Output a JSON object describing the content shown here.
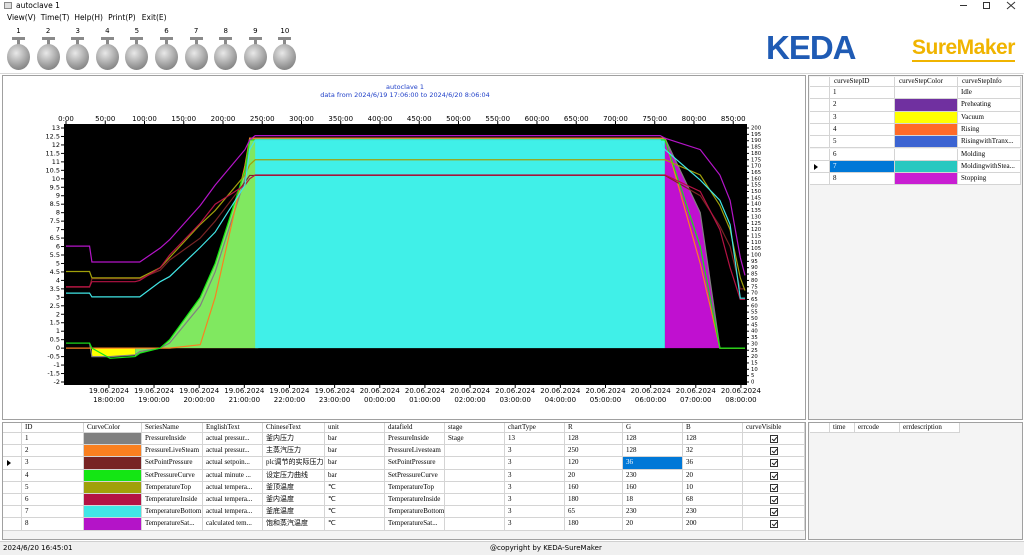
{
  "window": {
    "title": "autoclave 1"
  },
  "menu": [
    "View(V)",
    "Time(T)",
    "Help(H)",
    "Print(P)",
    "Exit(E)"
  ],
  "toolbar": [
    "1",
    "2",
    "3",
    "4",
    "5",
    "6",
    "7",
    "8",
    "9",
    "10"
  ],
  "logo": {
    "brand": "KEDA",
    "product": "SureMaker"
  },
  "chart_data": {
    "type": "line",
    "title": "autoclave 1",
    "subtitle": "data from 2024/6/19 17:06:00 to 2024/6/20 8:06:04",
    "plot_background": "#000000",
    "grid": false,
    "xlim": [
      0,
      865
    ],
    "xticks": [
      {
        "value": 0,
        "label": "0:00"
      },
      {
        "value": 50,
        "label": "50:00"
      },
      {
        "value": 100,
        "label": "100:00"
      },
      {
        "value": 150,
        "label": "150:00"
      },
      {
        "value": 200,
        "label": "200:00"
      },
      {
        "value": 250,
        "label": "250:00"
      },
      {
        "value": 300,
        "label": "300:00"
      },
      {
        "value": 350,
        "label": "350:00"
      },
      {
        "value": 400,
        "label": "400:00"
      },
      {
        "value": 450,
        "label": "450:00"
      },
      {
        "value": 500,
        "label": "500:00"
      },
      {
        "value": 550,
        "label": "550:00"
      },
      {
        "value": 600,
        "label": "600:00"
      },
      {
        "value": 650,
        "label": "650:00"
      },
      {
        "value": 700,
        "label": "700:00"
      },
      {
        "value": 750,
        "label": "750:00"
      },
      {
        "value": 800,
        "label": "800:00"
      },
      {
        "value": 850,
        "label": "850:00"
      }
    ],
    "x2lim": [
      17.05,
      32.09
    ],
    "x2ticks": [
      {
        "value": 18,
        "label": "19.06.2024\n18:00:00"
      },
      {
        "value": 19,
        "label": "19.06.2024\n19:00:00"
      },
      {
        "value": 20,
        "label": "19.06.2024\n20:00:00"
      },
      {
        "value": 21,
        "label": "19.06.2024\n21:00:00"
      },
      {
        "value": 22,
        "label": "19.06.2024\n22:00:00"
      },
      {
        "value": 23,
        "label": "19.06.2024\n23:00:00"
      },
      {
        "value": 24,
        "label": "20.06.2024\n00:00:00"
      },
      {
        "value": 25,
        "label": "20.06.2024\n01:00:00"
      },
      {
        "value": 26,
        "label": "20.06.2024\n02:00:00"
      },
      {
        "value": 27,
        "label": "20.06.2024\n03:00:00"
      },
      {
        "value": 28,
        "label": "20.06.2024\n04:00:00"
      },
      {
        "value": 29,
        "label": "20.06.2024\n05:00:00"
      },
      {
        "value": 30,
        "label": "20.06.2024\n06:00:00"
      },
      {
        "value": 31,
        "label": "20.06.2024\n07:00:00"
      },
      {
        "value": 32,
        "label": "20.06.2024\n08:00:00"
      }
    ],
    "ylim": [
      -2,
      13
    ],
    "yticks": [
      -2,
      -1.5,
      -1,
      -0.5,
      0,
      0.5,
      1,
      1.5,
      2,
      2.5,
      3,
      3.5,
      4,
      4.5,
      5,
      5.5,
      6,
      6.5,
      7,
      7.5,
      8,
      8.5,
      9,
      9.5,
      10,
      10.5,
      11,
      11.5,
      12,
      12.5,
      13
    ],
    "y2lim": [
      0,
      200
    ],
    "y2ticks": [
      0,
      5,
      10,
      15,
      20,
      25,
      30,
      35,
      40,
      45,
      50,
      55,
      60,
      65,
      70,
      75,
      80,
      85,
      90,
      95,
      100,
      105,
      110,
      115,
      120,
      125,
      130,
      135,
      140,
      145,
      150,
      155,
      160,
      165,
      170,
      175,
      180,
      185,
      190,
      195,
      200
    ],
    "x": [
      0,
      30,
      33,
      56,
      88,
      94,
      120,
      132,
      171,
      190,
      228,
      234,
      241,
      245,
      757,
      763,
      808,
      833,
      846,
      859,
      865
    ],
    "series": [
      {
        "axis": "y",
        "values": [
          0.3,
          0.3,
          -0.5,
          -0.5,
          -0.4,
          -0.2,
          0,
          0.3,
          2.5,
          4.5,
          10,
          12.4,
          12.4,
          12.4,
          12.4,
          12.4,
          8,
          0,
          0,
          0,
          0
        ]
      },
      {
        "axis": "y",
        "values": [
          0,
          0,
          0,
          0,
          0,
          0,
          0,
          0,
          0.2,
          3,
          10.8,
          12.4,
          12.4,
          12.4,
          12.4,
          12.4,
          5,
          0,
          0,
          0,
          0
        ]
      },
      {
        "axis": "y",
        "values": [
          3.6,
          3.6,
          4.1,
          4.1,
          4.1,
          4.1,
          4.6,
          5.2,
          6.5,
          7.5,
          9.8,
          10.2,
          10.2,
          10.2,
          10.2,
          10.2,
          9,
          7.2,
          6,
          3.5,
          3.5
        ]
      },
      {
        "axis": "y",
        "values": [
          0.3,
          0.3,
          0,
          -0.6,
          -0.5,
          -0.3,
          0,
          0.5,
          3,
          5,
          10.5,
          12.3,
          12.3,
          12.3,
          12.3,
          12.3,
          6,
          0,
          0,
          0,
          0
        ]
      },
      {
        "axis": "y2",
        "values": [
          87,
          87,
          82,
          82,
          82,
          82,
          90,
          98,
          124,
          135,
          163,
          171,
          175,
          175,
          175,
          175,
          163,
          139,
          120,
          82,
          72
        ]
      },
      {
        "axis": "y2",
        "values": [
          75,
          75,
          79,
          79,
          79,
          80,
          90,
          100,
          125,
          140,
          155,
          160,
          163,
          163,
          163,
          163,
          150,
          120,
          90,
          65,
          65
        ]
      },
      {
        "axis": "y2",
        "values": [
          70,
          70,
          67,
          67,
          67,
          67,
          79,
          83,
          106,
          118,
          155,
          183,
          190.5,
          190.5,
          190.5,
          183,
          159,
          143,
          124,
          66,
          66
        ]
      },
      {
        "axis": "y2",
        "values": [
          107,
          107,
          94.5,
          94.5,
          94.5,
          94.5,
          105.5,
          112,
          139,
          155,
          183,
          190.5,
          194,
          194,
          194,
          192,
          183,
          163,
          143,
          98,
          84
        ]
      }
    ],
    "areas": [
      {
        "series": 0,
        "from": 33,
        "to": 88,
        "color": "#ffff00"
      },
      {
        "series": 1,
        "from": 132,
        "to": 245,
        "color": "#ff6a20"
      },
      {
        "series": 3,
        "from": 88,
        "to": 245,
        "color": "#80e860"
      },
      {
        "series": 0,
        "from": 241,
        "to": 763,
        "color": "#40f0e8"
      },
      {
        "series": 0,
        "from": 763,
        "to": 833,
        "color": "#c010d0"
      }
    ]
  },
  "steps_table": {
    "columns": [
      "curveStepID",
      "curveStepColor",
      "curveStepInfo"
    ],
    "current_row": 6,
    "rows": [
      {
        "id": 1,
        "color": "#ffffff",
        "info": "Idle"
      },
      {
        "id": 2,
        "color": "#7030a0",
        "info": "Preheating"
      },
      {
        "id": 3,
        "color": "#ffff00",
        "info": "Vacuum"
      },
      {
        "id": 4,
        "color": "#ff6a28",
        "info": "Rising"
      },
      {
        "id": 5,
        "color": "#3c64d2",
        "info": "RisingwithTranx..."
      },
      {
        "id": 6,
        "color": "#ffffff",
        "info": "Molding"
      },
      {
        "id": 7,
        "color": "#28c8c0",
        "info": "MoldingwithStea..."
      },
      {
        "id": 8,
        "color": "#c81ed2",
        "info": "Stopping"
      }
    ]
  },
  "series_table": {
    "columns": [
      "ID",
      "CurveColor",
      "SeriesName",
      "EnglishText",
      "ChineseText",
      "unit",
      "datafield",
      "stage",
      "chartType",
      "R",
      "G",
      "B",
      "curveVisible"
    ],
    "current_row": 2,
    "highlight": {
      "row": 2,
      "key": "g"
    },
    "rows": [
      {
        "id": 1,
        "series_name": "PressureInside",
        "english": "actual pressur...",
        "chinese": "釜内压力",
        "unit": "bar",
        "datafield": "PressureInside",
        "stage": "Stage",
        "chart_type": 13,
        "r": 128,
        "g": 128,
        "b": 128,
        "visible": true
      },
      {
        "id": 2,
        "series_name": "PressureLiveSteam",
        "english": "actual pressur...",
        "chinese": "主蒸汽压力",
        "unit": "bar",
        "datafield": "PressureLivesteam",
        "chart_type": 3,
        "r": 250,
        "g": 128,
        "b": 32,
        "visible": true
      },
      {
        "id": 3,
        "series_name": "SetPointPressure",
        "english": "actual setpoin...",
        "chinese": "plc调节的实际压力",
        "unit": "bar",
        "datafield": "SetPointPressure",
        "chart_type": 3,
        "r": 120,
        "g": 36,
        "b": 36,
        "visible": true
      },
      {
        "id": 4,
        "series_name": "SetPressureCurve",
        "english": "actual minute ...",
        "chinese": "设定压力曲线",
        "unit": "bar",
        "datafield": "SetPressureCurve",
        "chart_type": 3,
        "r": 20,
        "g": 230,
        "b": 20,
        "visible": true
      },
      {
        "id": 5,
        "series_name": "TemperatureTop",
        "english": "actual tempera...",
        "chinese": "釜顶温度",
        "unit": "℃",
        "datafield": "TemperatureTop",
        "chart_type": 3,
        "r": 160,
        "g": 160,
        "b": 10,
        "visible": true
      },
      {
        "id": 6,
        "series_name": "TemperatureInside",
        "english": "actual tempera...",
        "chinese": "釜内温度",
        "unit": "℃",
        "datafield": "TemperatureInside",
        "chart_type": 3,
        "r": 180,
        "g": 18,
        "b": 68,
        "visible": true
      },
      {
        "id": 7,
        "series_name": "TemperatureBottom",
        "english": "actual tempera...",
        "chinese": "釜底温度",
        "unit": "℃",
        "datafield": "TemperatureBottom",
        "chart_type": 3,
        "r": 65,
        "g": 230,
        "b": 230,
        "visible": true
      },
      {
        "id": 8,
        "series_name": "TemperatureSat...",
        "english": "calculated tem...",
        "chinese": "饱和蒸汽温度",
        "unit": "℃",
        "datafield": "TemperatureSat...",
        "chart_type": 3,
        "r": 180,
        "g": 20,
        "b": 200,
        "visible": true
      }
    ]
  },
  "error_table": {
    "columns": [
      "time",
      "errcode",
      "errdescription"
    ]
  },
  "status": {
    "time": "2024/6/20 16:45:01",
    "copyright": "@copyright by KEDA-SureMaker"
  }
}
